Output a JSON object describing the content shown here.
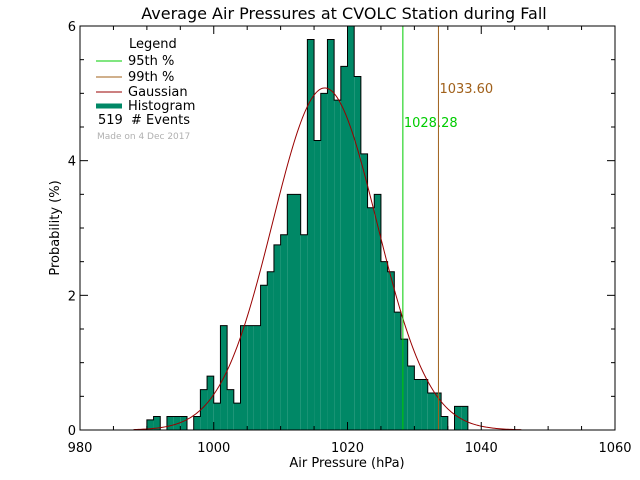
{
  "chart_data": {
    "type": "bar",
    "title": "Average Air Pressures at CVOLC Station during Fall",
    "xlabel": "Air Pressure (hPa)",
    "ylabel": "Probability (%)",
    "xlim": [
      980,
      1060
    ],
    "ylim": [
      0,
      6
    ],
    "xticks": [
      "980",
      "1000",
      "1020",
      "1040",
      "1060"
    ],
    "yticks": [
      "0",
      "2",
      "4",
      "6"
    ],
    "bin_width": 1,
    "bins": [
      {
        "x": 990,
        "y": 0.15
      },
      {
        "x": 991,
        "y": 0.2
      },
      {
        "x": 992,
        "y": 0.0
      },
      {
        "x": 993,
        "y": 0.2
      },
      {
        "x": 994,
        "y": 0.2
      },
      {
        "x": 995,
        "y": 0.2
      },
      {
        "x": 996,
        "y": 0.0
      },
      {
        "x": 997,
        "y": 0.2
      },
      {
        "x": 998,
        "y": 0.6
      },
      {
        "x": 999,
        "y": 0.8
      },
      {
        "x": 1000,
        "y": 0.4
      },
      {
        "x": 1001,
        "y": 1.55
      },
      {
        "x": 1002,
        "y": 0.6
      },
      {
        "x": 1003,
        "y": 0.4
      },
      {
        "x": 1004,
        "y": 1.55
      },
      {
        "x": 1005,
        "y": 1.55
      },
      {
        "x": 1006,
        "y": 1.55
      },
      {
        "x": 1007,
        "y": 2.15
      },
      {
        "x": 1008,
        "y": 2.35
      },
      {
        "x": 1009,
        "y": 2.75
      },
      {
        "x": 1010,
        "y": 2.9
      },
      {
        "x": 1011,
        "y": 3.5
      },
      {
        "x": 1012,
        "y": 3.5
      },
      {
        "x": 1013,
        "y": 2.9
      },
      {
        "x": 1014,
        "y": 5.8
      },
      {
        "x": 1015,
        "y": 4.3
      },
      {
        "x": 1016,
        "y": 5.0
      },
      {
        "x": 1017,
        "y": 5.8
      },
      {
        "x": 1018,
        "y": 4.9
      },
      {
        "x": 1019,
        "y": 5.4
      },
      {
        "x": 1020,
        "y": 6.0
      },
      {
        "x": 1021,
        "y": 5.25
      },
      {
        "x": 1022,
        "y": 4.1
      },
      {
        "x": 1023,
        "y": 3.3
      },
      {
        "x": 1024,
        "y": 3.5
      },
      {
        "x": 1025,
        "y": 2.5
      },
      {
        "x": 1026,
        "y": 2.35
      },
      {
        "x": 1027,
        "y": 1.75
      },
      {
        "x": 1028,
        "y": 1.35
      },
      {
        "x": 1029,
        "y": 0.95
      },
      {
        "x": 1030,
        "y": 0.75
      },
      {
        "x": 1031,
        "y": 0.75
      },
      {
        "x": 1032,
        "y": 0.55
      },
      {
        "x": 1033,
        "y": 0.55
      },
      {
        "x": 1034,
        "y": 0.2
      },
      {
        "x": 1035,
        "y": 0.0
      },
      {
        "x": 1036,
        "y": 0.35
      },
      {
        "x": 1037,
        "y": 0.35
      }
    ],
    "gaussian": {
      "mean": 1016.6,
      "sigma": 7.8,
      "peak": 5.08
    },
    "percentiles": [
      {
        "name": "95th %",
        "value": 1028.28,
        "label": "1028.28",
        "color": "#00cc00"
      },
      {
        "name": "99th %",
        "value": 1033.6,
        "label": "1033.60",
        "color": "#a0601a"
      }
    ],
    "legend": {
      "title": "Legend",
      "placement": "top-left",
      "items": [
        {
          "label": "95th %",
          "color": "#00cc00"
        },
        {
          "label": "99th %",
          "color": "#a0601a"
        },
        {
          "label": "Gaussian",
          "color": "#990000"
        },
        {
          "label": "Histogram",
          "color": "#008866"
        }
      ],
      "events_count": "519",
      "events_label": "# Events"
    },
    "footnote": "Made on 4 Dec 2017",
    "colors": {
      "histogram": "#008866",
      "gaussian": "#990000",
      "axes": "#000000"
    }
  }
}
